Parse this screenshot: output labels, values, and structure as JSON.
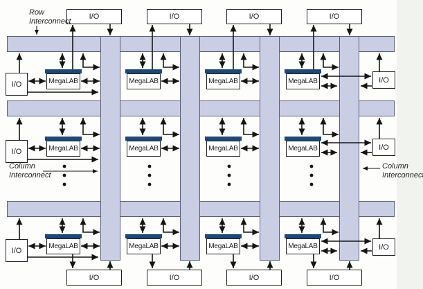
{
  "diagram": {
    "labels": {
      "row_interconnect_line1": "Row",
      "row_interconnect_line2": "Interconnect",
      "column_interconnect_line1": "Column",
      "column_interconnect_line2": "Interconnect"
    },
    "io_label": "I/O",
    "megalab_label": "MegaLAB",
    "structure": {
      "row_interconnects": 3,
      "column_interconnects": 4,
      "megalab_rows": 3,
      "megalab_columns": 4,
      "top_io_blocks": 4,
      "bottom_io_blocks": 4,
      "left_io_blocks": 3,
      "right_io_blocks": 3,
      "continuation_dot_groups": 4
    },
    "colors": {
      "interconnect_fill": "#c9cee5",
      "interconnect_border": "#566077",
      "megalab_accent": "#1c4878",
      "box_border": "#1f1f1f",
      "wire": "#151515",
      "background": "#fdfdfb",
      "page_edge": "#f1f3ef"
    }
  }
}
